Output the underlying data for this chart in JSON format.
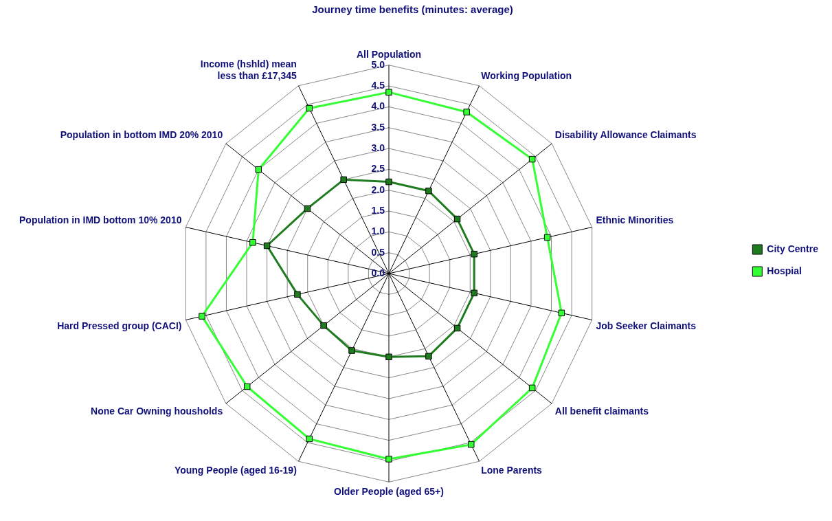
{
  "chart_data": {
    "type": "radar",
    "title": "Journey time benefits (minutes: average)",
    "categories": [
      "All Population",
      "Working Population",
      "Disability Allowance Claimants",
      "Ethnic Minorities",
      "Job Seeker Claimants",
      "All benefit claimants",
      "Lone Parents",
      "Older People (aged 65+)",
      "Young People (aged 16-19)",
      "None Car Owning housholds",
      "Hard Pressed group (CACI)",
      "Population in IMD bottom 10% 2010",
      "Population in bottom IMD 20% 2010",
      "Income (hshld) mean less than £17,345"
    ],
    "series": [
      {
        "name": "City Centre",
        "color": "#1e7b1e",
        "values": [
          2.2,
          2.2,
          2.1,
          2.1,
          2.1,
          2.1,
          2.2,
          2.0,
          2.05,
          2.0,
          2.25,
          3.0,
          2.5,
          2.5
        ]
      },
      {
        "name": "Hospial",
        "color": "#33ff33",
        "values": [
          4.35,
          4.3,
          4.4,
          3.9,
          4.25,
          4.4,
          4.55,
          4.45,
          4.4,
          4.35,
          4.6,
          3.35,
          4.0,
          4.4
        ]
      }
    ],
    "ylim": [
      0,
      5
    ],
    "yticks": [
      {
        "value": 0,
        "label": "0.0"
      },
      {
        "value": 0.5,
        "label": "0.5"
      },
      {
        "value": 1,
        "label": "1.0"
      },
      {
        "value": 1.5,
        "label": "1.5"
      },
      {
        "value": 2,
        "label": "2.0"
      },
      {
        "value": 2.5,
        "label": "2.5"
      },
      {
        "value": 3,
        "label": "3.0"
      },
      {
        "value": 3.5,
        "label": "3.5"
      },
      {
        "value": 4,
        "label": "4.0"
      },
      {
        "value": 4.5,
        "label": "4.5"
      },
      {
        "value": 5,
        "label": "5.0"
      }
    ],
    "grid": true,
    "legend": "right",
    "marker": "square",
    "line_style": "solid"
  }
}
